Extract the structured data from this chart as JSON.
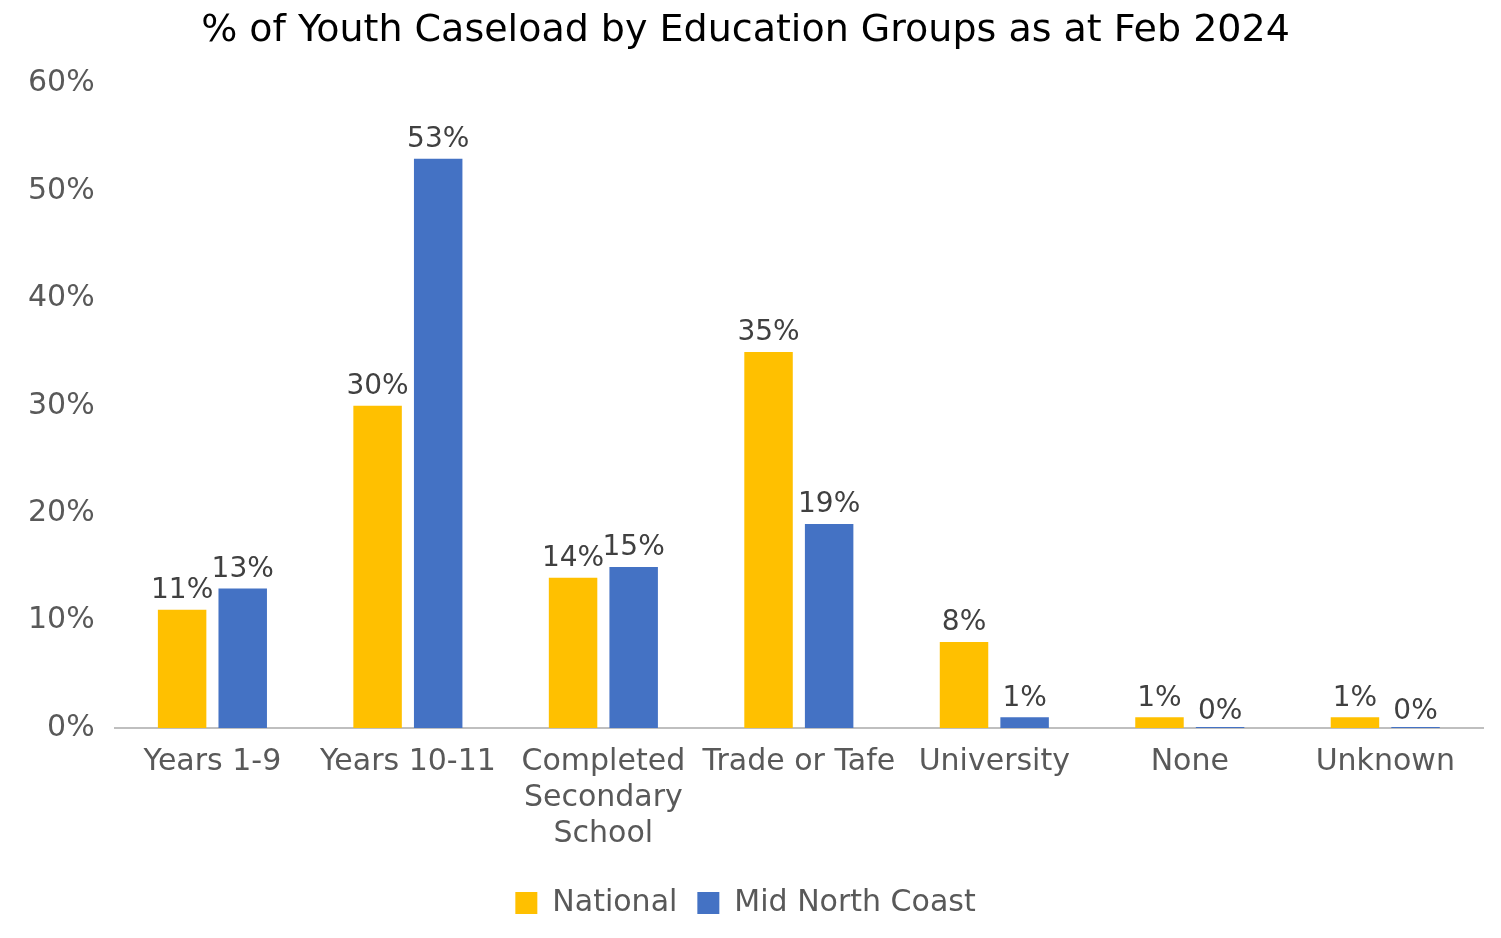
{
  "chart_data": {
    "type": "bar",
    "title": "% of Youth Caseload by Education Groups as at Feb 2024",
    "categories": [
      "Years 1-9",
      "Years 10-11",
      "Completed Secondary School",
      "Trade or Tafe",
      "University",
      "None",
      "Unknown"
    ],
    "series": [
      {
        "name": "National",
        "color": "#ffc000",
        "values": [
          11,
          30,
          14,
          35,
          8,
          1,
          1
        ],
        "value_labels": [
          "11%",
          "30%",
          "14%",
          "35%",
          "8%",
          "1%",
          "1%"
        ]
      },
      {
        "name": "Mid North Coast",
        "color": "#4472c4",
        "values": [
          13,
          53,
          15,
          19,
          1,
          0,
          0
        ],
        "value_labels": [
          "13%",
          "53%",
          "15%",
          "19%",
          "1%",
          "0%",
          "0%"
        ]
      }
    ],
    "ylim": [
      0,
      60
    ],
    "yticks": [
      {
        "value": 0,
        "label": "0%"
      },
      {
        "value": 10,
        "label": "10%"
      },
      {
        "value": 20,
        "label": "20%"
      },
      {
        "value": 30,
        "label": "30%"
      },
      {
        "value": 40,
        "label": "40%"
      },
      {
        "value": 50,
        "label": "50%"
      },
      {
        "value": 60,
        "label": "60%"
      }
    ],
    "grid": false,
    "legend": "bottom"
  }
}
